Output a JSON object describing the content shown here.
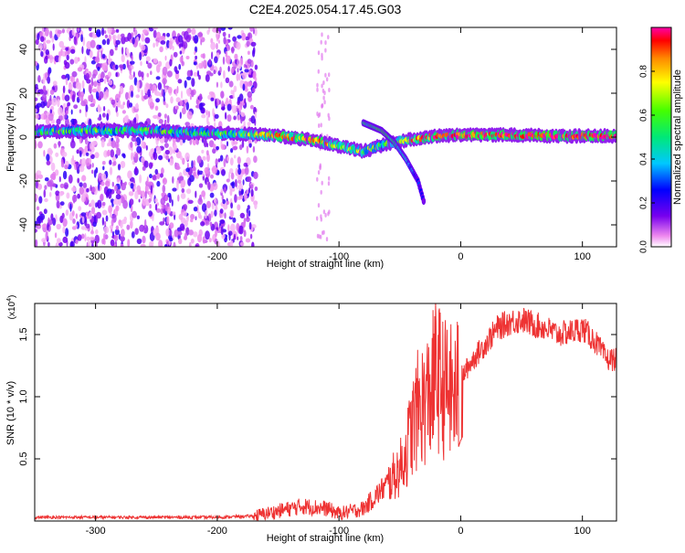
{
  "title": "C2E4.2025.054.17.45.G03",
  "chart_data": [
    {
      "type": "heatmap",
      "xlabel": "Height of straight line (km)",
      "ylabel": "Frequency (Hz)",
      "xlim": [
        -350,
        128
      ],
      "ylim": [
        -50,
        50
      ],
      "x_ticks": [
        -300,
        -200,
        -100,
        0,
        100
      ],
      "y_ticks": [
        -40,
        -20,
        0,
        20,
        40
      ],
      "colorbar": {
        "label": "Normalized spectral amplitude",
        "range": [
          0,
          1
        ],
        "ticks": [
          0.0,
          0.2,
          0.4,
          0.6,
          0.8
        ]
      },
      "main_band": [
        {
          "x": -340,
          "f": 2.5,
          "amp": 0.45
        },
        {
          "x": -300,
          "f": 3.0,
          "amp": 0.45
        },
        {
          "x": -260,
          "f": 3.0,
          "amp": 0.45
        },
        {
          "x": -220,
          "f": 2.0,
          "amp": 0.45
        },
        {
          "x": -180,
          "f": 1.5,
          "amp": 0.5
        },
        {
          "x": -150,
          "f": 0.5,
          "amp": 0.75
        },
        {
          "x": -120,
          "f": -1.5,
          "amp": 0.75
        },
        {
          "x": -100,
          "f": -4.0,
          "amp": 0.65
        },
        {
          "x": -80,
          "f": -6.5,
          "amp": 0.5
        },
        {
          "x": -60,
          "f": -3.0,
          "amp": 0.45
        },
        {
          "x": -40,
          "f": -1.0,
          "amp": 0.7
        },
        {
          "x": -20,
          "f": 0.5,
          "amp": 0.8
        },
        {
          "x": 0,
          "f": 1.0,
          "amp": 0.8
        },
        {
          "x": 40,
          "f": 1.0,
          "amp": 0.8
        },
        {
          "x": 80,
          "f": 0.5,
          "amp": 0.85
        },
        {
          "x": 125,
          "f": 0.5,
          "amp": 0.85
        }
      ],
      "side_branch": [
        {
          "x": -80,
          "f": 6.5,
          "amp": 0.45
        },
        {
          "x": -65,
          "f": 3.0,
          "amp": 0.55
        },
        {
          "x": -55,
          "f": -2.0,
          "amp": 0.5
        },
        {
          "x": -45,
          "f": -10.0,
          "amp": 0.35
        },
        {
          "x": -35,
          "f": -20.0,
          "amp": 0.25
        },
        {
          "x": -30,
          "f": -30.0,
          "amp": 0.2
        }
      ]
    },
    {
      "type": "line",
      "xlabel": "Height of straight line (km)",
      "ylabel": "SNR (10 * v/v)",
      "y_multiplier": "(x10",
      "y_multiplier_exp": "4",
      "y_multiplier_close": ")",
      "xlim": [
        -350,
        128
      ],
      "ylim": [
        0,
        1.75
      ],
      "x_ticks": [
        -300,
        -200,
        -100,
        0,
        100
      ],
      "y_ticks": [
        0.5,
        1.0,
        1.5
      ],
      "y_tick_labels": [
        "0.5",
        "1.0",
        "1.5"
      ],
      "color": "#ee3333",
      "series": [
        {
          "x": [
            -350,
            -300,
            -250,
            -200,
            -170,
            -150,
            -130,
            -110,
            -100,
            -90,
            -80,
            -70,
            -60,
            -50,
            -45,
            -40,
            -35,
            -30,
            -25,
            -20,
            -15,
            -10,
            -5,
            0,
            10,
            20,
            30,
            40,
            50,
            60,
            70,
            80,
            90,
            100,
            110,
            120,
            128
          ],
          "y": [
            0.03,
            0.03,
            0.03,
            0.03,
            0.04,
            0.08,
            0.12,
            0.1,
            0.06,
            0.08,
            0.1,
            0.2,
            0.3,
            0.42,
            0.55,
            0.75,
            0.9,
            0.95,
            1.02,
            1.2,
            1.08,
            1.05,
            1.0,
            1.15,
            1.3,
            1.42,
            1.55,
            1.6,
            1.62,
            1.58,
            1.55,
            1.5,
            1.52,
            1.55,
            1.45,
            1.3,
            1.3
          ]
        }
      ]
    }
  ],
  "colors": {
    "line": "#ee3333",
    "axis": "#000000",
    "background": "#ffffff"
  }
}
